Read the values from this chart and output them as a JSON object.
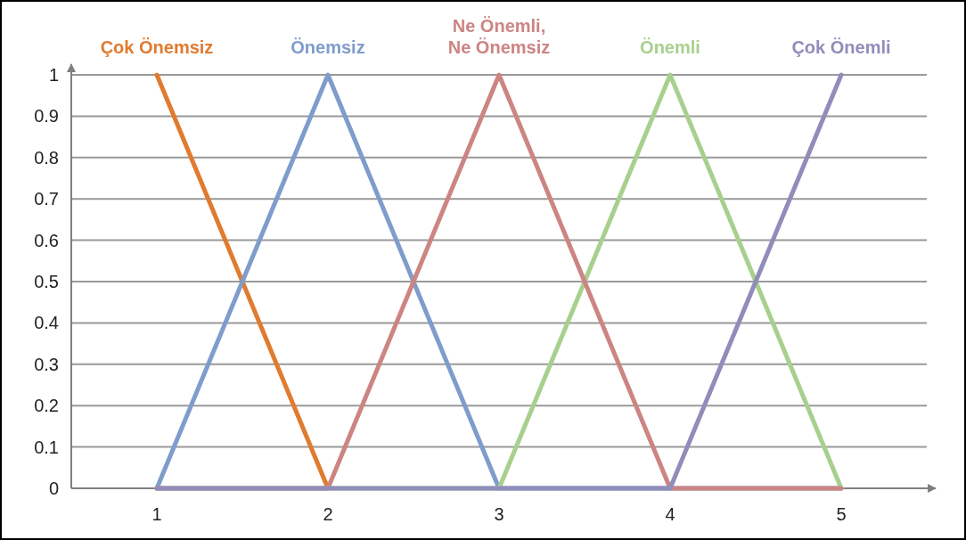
{
  "chart_data": {
    "type": "line",
    "x": [
      1,
      2,
      3,
      4,
      5
    ],
    "series": [
      {
        "name": "Çok Önemsiz",
        "color": "#e07b2f",
        "values": [
          1,
          0,
          null,
          null,
          null
        ]
      },
      {
        "name": "Önemsiz",
        "color": "#7f9ccb",
        "values": [
          0,
          1,
          0,
          0,
          0
        ]
      },
      {
        "name": "Önemli",
        "color": "#a8d08d",
        "values": [
          0,
          0,
          0,
          1,
          0
        ]
      },
      {
        "name": "Ne Önemli, Ne Önemsiz",
        "color": "#cc8583",
        "values": [
          0,
          0,
          1,
          0,
          0
        ]
      },
      {
        "name": "Çok Önemli",
        "color": "#908dbb",
        "values": [
          0,
          0,
          0,
          0,
          1
        ]
      }
    ],
    "xlim": [
      0.5,
      5.5
    ],
    "xticks": [
      1,
      2,
      3,
      4,
      5
    ],
    "ylim": [
      0,
      1
    ],
    "yticks": [
      0,
      0.1,
      0.2,
      0.3,
      0.4,
      0.5,
      0.6,
      0.7,
      0.8,
      0.9,
      1
    ],
    "grid": "y",
    "marker": "none",
    "line_style": "solid"
  }
}
